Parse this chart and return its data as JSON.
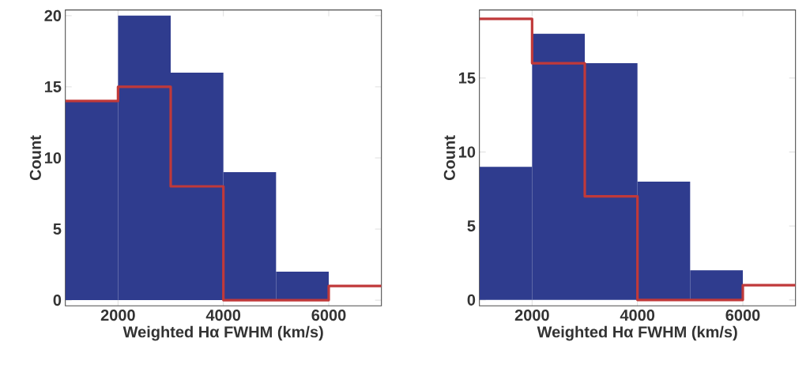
{
  "chart_data": [
    {
      "type": "histogram",
      "xlabel": "Weighted Hα FWHM (km/s)",
      "ylabel": "Count",
      "bins": [
        1000,
        2000,
        3000,
        4000,
        5000,
        6000,
        7000
      ],
      "xlim": [
        1000,
        7000
      ],
      "ylim": [
        -0.4,
        20.4
      ],
      "xticks": [
        2000,
        4000,
        6000
      ],
      "yticks": [
        0,
        5,
        10,
        15,
        20
      ],
      "series": [
        {
          "type": "histogram",
          "color": "#2f3c8e",
          "values": [
            14,
            20,
            16,
            9,
            2,
            0
          ]
        },
        {
          "type": "step",
          "color": "#c0393a",
          "x": [
            1000,
            2000,
            3000,
            4000,
            5000,
            6000,
            7000
          ],
          "values": [
            14,
            15,
            8,
            0,
            0,
            1,
            1
          ]
        }
      ]
    },
    {
      "type": "histogram",
      "xlabel": "Weighted Hα FWHM (km/s)",
      "ylabel": "Count",
      "bins": [
        1000,
        2000,
        3000,
        4000,
        5000,
        6000,
        7000
      ],
      "xlim": [
        1000,
        7000
      ],
      "ylim": [
        -0.4,
        19.6
      ],
      "xticks": [
        2000,
        4000,
        6000
      ],
      "yticks": [
        0,
        5,
        10,
        15
      ],
      "series": [
        {
          "type": "histogram",
          "color": "#2f3c8e",
          "values": [
            9,
            18,
            16,
            8,
            2,
            0
          ]
        },
        {
          "type": "step",
          "color": "#c0393a",
          "x": [
            1000,
            2000,
            3000,
            4000,
            5000,
            6000,
            7000
          ],
          "values": [
            19,
            16,
            7,
            0,
            0,
            1,
            1
          ]
        }
      ]
    }
  ]
}
